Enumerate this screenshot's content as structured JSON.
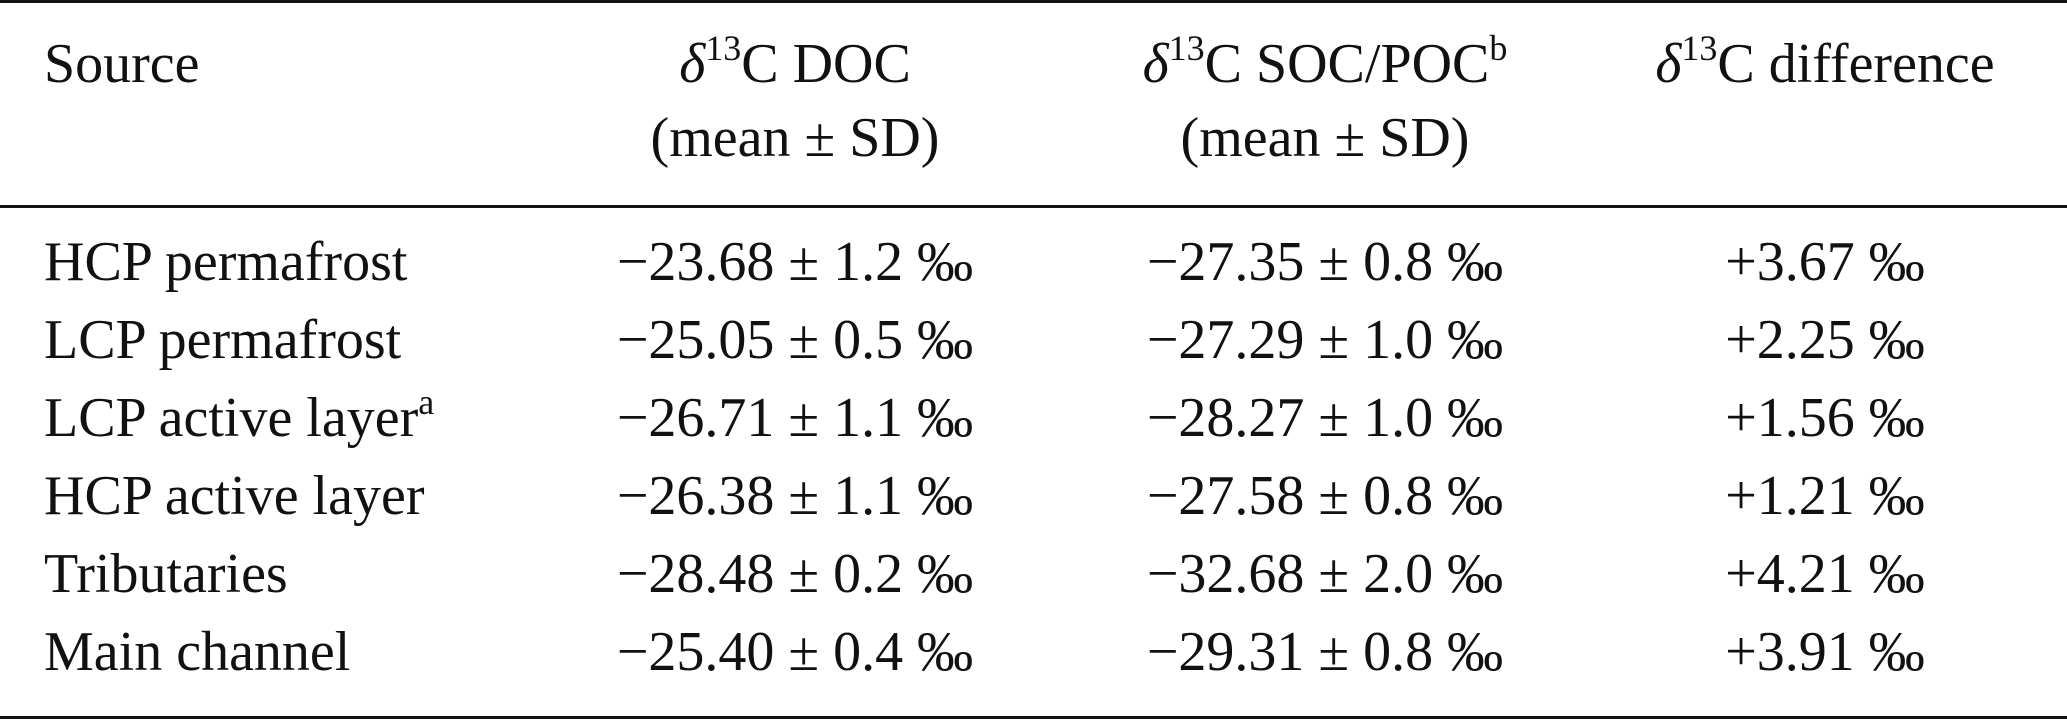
{
  "headers": {
    "source": "Source",
    "doc_line1_prefix": "δ",
    "doc_line1_sup": "13",
    "doc_line1_rest": "C DOC",
    "doc_line2": "(mean ± SD)",
    "soc_line1_prefix": "δ",
    "soc_line1_sup": "13",
    "soc_line1_rest": "C SOC/POC",
    "soc_line1_footnote": "b",
    "soc_line2": "(mean ± SD)",
    "diff_prefix": "δ",
    "diff_sup": "13",
    "diff_rest": "C difference"
  },
  "rows": [
    {
      "source": "HCP permafrost",
      "footnote": "",
      "doc": "−23.68 ± 1.2 ‰",
      "soc": "−27.35 ± 0.8 ‰",
      "diff": "+3.67 ‰"
    },
    {
      "source": "LCP permafrost",
      "footnote": "",
      "doc": "−25.05 ± 0.5 ‰",
      "soc": "−27.29 ± 1.0 ‰",
      "diff": "+2.25 ‰"
    },
    {
      "source": "LCP active layer",
      "footnote": "a",
      "doc": "−26.71 ± 1.1 ‰",
      "soc": "−28.27 ± 1.0 ‰",
      "diff": "+1.56 ‰"
    },
    {
      "source": "HCP active layer",
      "footnote": "",
      "doc": "−26.38 ± 1.1 ‰",
      "soc": "−27.58 ± 0.8 ‰",
      "diff": "+1.21 ‰"
    },
    {
      "source": "Tributaries",
      "footnote": "",
      "doc": "−28.48 ± 0.2 ‰",
      "soc": "−32.68 ± 2.0 ‰",
      "diff": "+4.21 ‰"
    },
    {
      "source": "Main channel",
      "footnote": "",
      "doc": "−25.40 ± 0.4 ‰",
      "soc": "−29.31 ± 0.8 ‰",
      "diff": "+3.91 ‰"
    }
  ]
}
